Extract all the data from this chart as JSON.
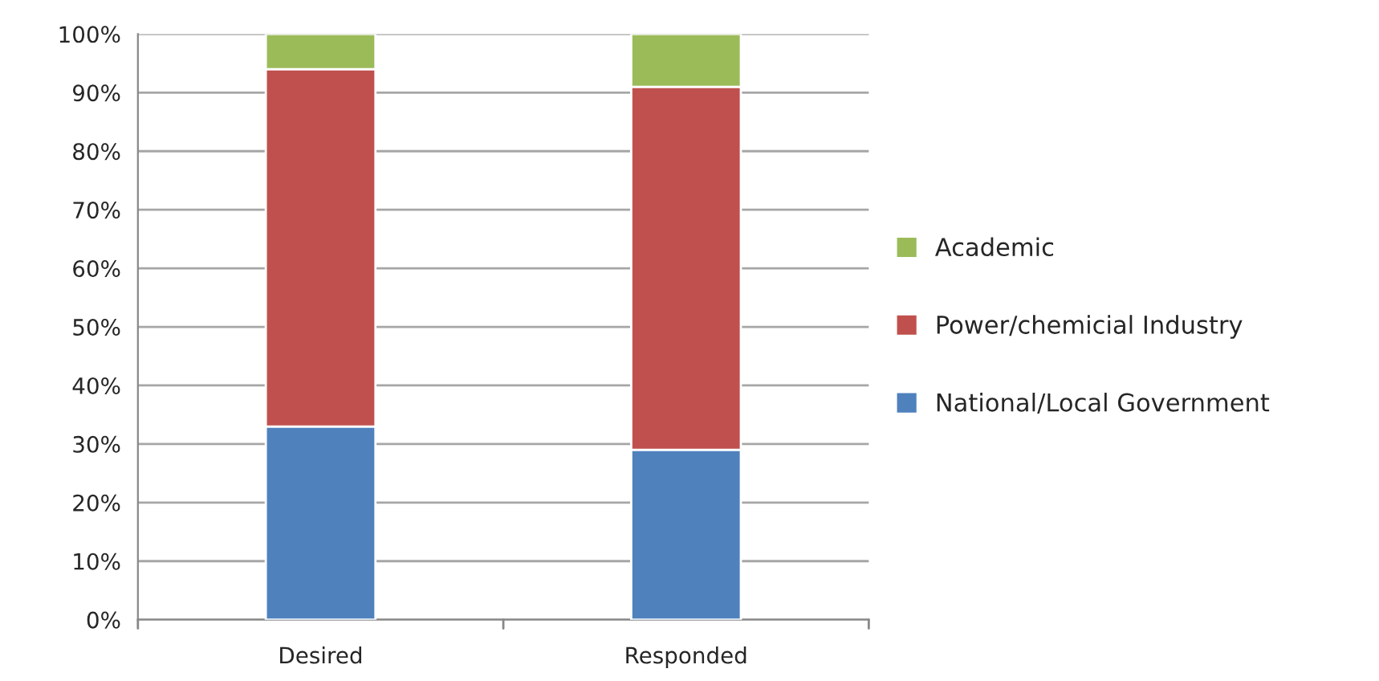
{
  "chart_data": {
    "type": "bar",
    "stacked": true,
    "categories": [
      "Desired",
      "Responded"
    ],
    "series": [
      {
        "name": "National/Local Government",
        "color": "#4f81bd",
        "values": [
          33,
          29
        ]
      },
      {
        "name": "Power/chemicial Industry",
        "color": "#c0504d",
        "values": [
          61,
          62
        ]
      },
      {
        "name": "Academic",
        "color": "#9bbb59",
        "values": [
          6,
          9
        ]
      }
    ],
    "ylim": [
      0,
      100
    ],
    "yticks": [
      {
        "value": 0,
        "label": "0%"
      },
      {
        "value": 10,
        "label": "10%"
      },
      {
        "value": 20,
        "label": "20%"
      },
      {
        "value": 30,
        "label": "30%"
      },
      {
        "value": 40,
        "label": "40%"
      },
      {
        "value": 50,
        "label": "50%"
      },
      {
        "value": 60,
        "label": "60%"
      },
      {
        "value": 70,
        "label": "70%"
      },
      {
        "value": 80,
        "label": "80%"
      },
      {
        "value": 90,
        "label": "90%"
      },
      {
        "value": 100,
        "label": "100%"
      }
    ],
    "grid": "y",
    "legend": "right"
  }
}
